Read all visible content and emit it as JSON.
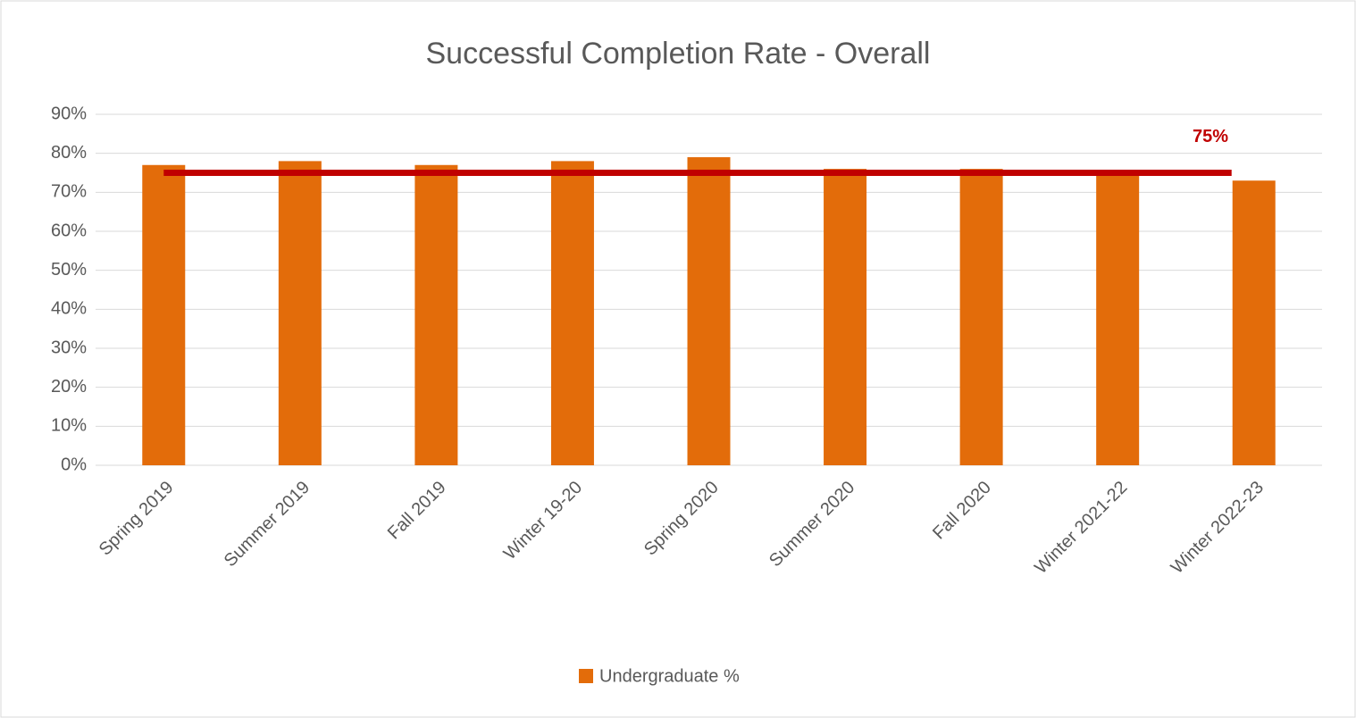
{
  "chart_data": {
    "type": "bar",
    "title": "Successful Completion Rate - Overall",
    "categories": [
      "Spring 2019",
      "Summer 2019",
      "Fall 2019",
      "Winter 19-20",
      "Spring 2020",
      "Summer 2020",
      "Fall 2020",
      "Winter 2021-22",
      "Winter 2022-23"
    ],
    "series": [
      {
        "name": "Undergraduate %",
        "color": "#e36c0a",
        "values": [
          77,
          78,
          77,
          78,
          79,
          76,
          76,
          75,
          73
        ]
      }
    ],
    "ylim": [
      0,
      90
    ],
    "yticks": [
      {
        "value": 0,
        "label": "0%"
      },
      {
        "value": 10,
        "label": "10%"
      },
      {
        "value": 20,
        "label": "20%"
      },
      {
        "value": 30,
        "label": "30%"
      },
      {
        "value": 40,
        "label": "40%"
      },
      {
        "value": 50,
        "label": "50%"
      },
      {
        "value": 60,
        "label": "60%"
      },
      {
        "value": 70,
        "label": "70%"
      },
      {
        "value": 80,
        "label": "80%"
      },
      {
        "value": 90,
        "label": "90%"
      }
    ],
    "grid": true,
    "legend": "bottom",
    "target": {
      "value": 75,
      "label": "75%",
      "color": "#c00000"
    }
  }
}
